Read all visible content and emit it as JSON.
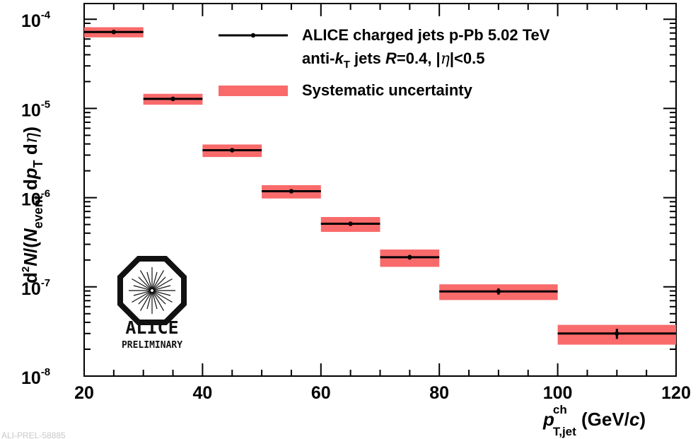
{
  "chart_data": {
    "type": "scatter",
    "x_scale": "linear",
    "y_scale": "log",
    "xlim": [
      20,
      120
    ],
    "ylim": [
      1e-08,
      0.00015
    ],
    "x_ticks": [
      {
        "value": 20,
        "label": "20"
      },
      {
        "value": 40,
        "label": "40"
      },
      {
        "value": 60,
        "label": "60"
      },
      {
        "value": 80,
        "label": "80"
      },
      {
        "value": 100,
        "label": "100"
      },
      {
        "value": 120,
        "label": "120"
      }
    ],
    "y_ticks": [
      {
        "value": 1e-08,
        "base": "10",
        "exp": "-8"
      },
      {
        "value": 1e-07,
        "base": "10",
        "exp": "-7"
      },
      {
        "value": 1e-06,
        "base": "10",
        "exp": "-6"
      },
      {
        "value": 1e-05,
        "base": "10",
        "exp": "-5"
      },
      {
        "value": 0.0001,
        "base": "10",
        "exp": "-4"
      }
    ],
    "xlabel": {
      "main": "p",
      "sup": "ch",
      "sub": "T,jet",
      "unit": " (GeV/",
      "unit_c": "c",
      "unit_end": ")"
    },
    "ylabel": {
      "d": "d",
      "two": "2",
      "N": "N",
      "slash": "/(",
      "N2": "N",
      "event": "event",
      "dp": " d",
      "p": "p",
      "T": "T",
      "deta": " d",
      "eta": "η",
      "close": ")"
    },
    "legend": {
      "line1": "ALICE charged jets p-Pb 5.02 TeV",
      "line2_a": "anti-",
      "line2_k": "k",
      "line2_T": "T",
      "line2_b": " jets  ",
      "line2_R": "R",
      "line2_c": "=0.4, |",
      "line2_eta": "η",
      "line2_d": "|<0.5",
      "line3": "Systematic uncertainty",
      "placement": "top-right"
    },
    "series": [
      {
        "name": "ALICE charged jets p-Pb 5.02 TeV",
        "color": "#000000",
        "sys_color": "#f96a6a",
        "points": [
          {
            "x": 25,
            "xlo": 20,
            "xhi": 30,
            "y": 7.2e-05,
            "stat": 0.02,
            "sys": 0.13
          },
          {
            "x": 35,
            "xlo": 30,
            "xhi": 40,
            "y": 1.28e-05,
            "stat": 0.02,
            "sys": 0.14
          },
          {
            "x": 45,
            "xlo": 40,
            "xhi": 50,
            "y": 3.4e-06,
            "stat": 0.03,
            "sys": 0.16
          },
          {
            "x": 55,
            "xlo": 50,
            "xhi": 60,
            "y": 1.18e-06,
            "stat": 0.04,
            "sys": 0.17
          },
          {
            "x": 65,
            "xlo": 60,
            "xhi": 70,
            "y": 5.1e-07,
            "stat": 0.05,
            "sys": 0.19
          },
          {
            "x": 75,
            "xlo": 70,
            "xhi": 80,
            "y": 2.15e-07,
            "stat": 0.06,
            "sys": 0.22
          },
          {
            "x": 90,
            "xlo": 80,
            "xhi": 100,
            "y": 8.9e-08,
            "stat": 0.08,
            "sys": 0.2
          },
          {
            "x": 110,
            "xlo": 100,
            "xhi": 120,
            "y": 3e-08,
            "stat": 0.13,
            "sys": 0.25
          }
        ]
      }
    ]
  },
  "logo": {
    "name": "ALICE",
    "tag": "PRELIMINARY"
  },
  "watermark": "ALI-PREL-58885"
}
